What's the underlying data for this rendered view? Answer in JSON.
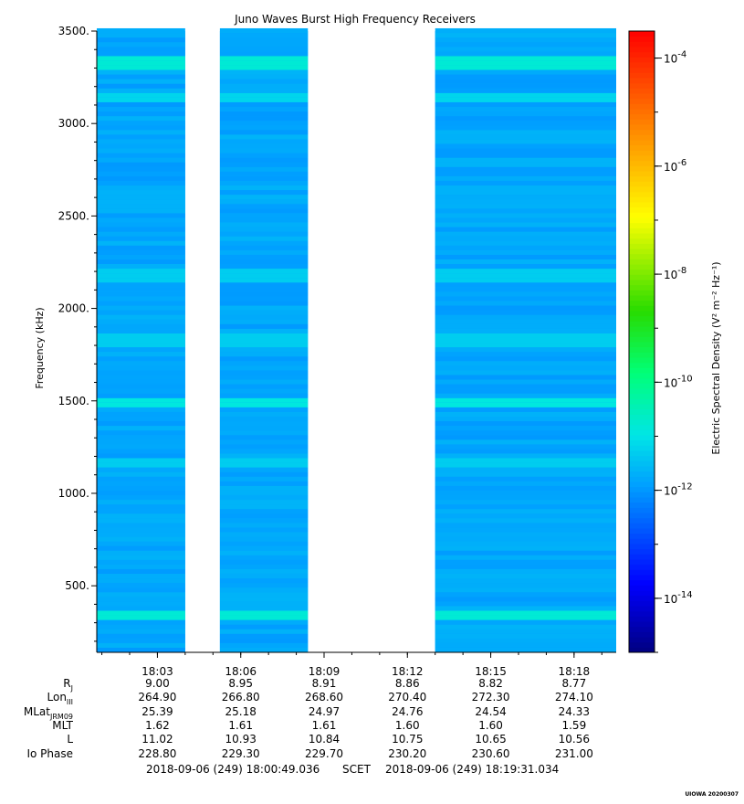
{
  "chart_data": {
    "type": "heatmap",
    "title": "Juno Waves Burst High Frequency Receivers",
    "ylabel": "Frequency (kHz)",
    "ylim": [
      140,
      3500
    ],
    "y_ticks": [
      500,
      1000,
      1500,
      2000,
      2500,
      3000,
      3500
    ],
    "y_tick_labels": [
      "500.",
      "1000.",
      "1500.",
      "2000.",
      "2500.",
      "3000.",
      "3500."
    ],
    "x_range": [
      "18:00:49",
      "18:19:31"
    ],
    "x_ticks": [
      "18:03",
      "18:06",
      "18:09",
      "18:12",
      "18:15",
      "18:18"
    ],
    "data_segments": [
      {
        "start": "18:00:49",
        "end": "18:04:00"
      },
      {
        "start": "18:05:15",
        "end": "18:08:25"
      },
      {
        "start": "18:13:00",
        "end": "18:19:31"
      }
    ],
    "gap_segments": [
      {
        "start": "18:04:00",
        "end": "18:05:15"
      },
      {
        "start": "18:08:25",
        "end": "18:13:00"
      }
    ],
    "background_level_log10": -11.8,
    "emission_bands": [
      {
        "freq_khz": 3330,
        "log10_level": -10.8
      },
      {
        "freq_khz": 3140,
        "log10_level": -11.2
      },
      {
        "freq_khz": 2180,
        "log10_level": -11.3
      },
      {
        "freq_khz": 1830,
        "log10_level": -11.3
      },
      {
        "freq_khz": 1495,
        "log10_level": -10.9
      },
      {
        "freq_khz": 1160,
        "log10_level": -11.3
      },
      {
        "freq_khz": 340,
        "log10_level": -10.8
      }
    ],
    "colorbar": {
      "label": "Electric Spectral Density (V² m⁻² Hz⁻¹)",
      "scale": "log",
      "range_log10": [
        -15,
        -3.5
      ],
      "tick_labels": [
        {
          "exp": -4,
          "text": "10-4"
        },
        {
          "exp": -6,
          "text": "10-6"
        },
        {
          "exp": -8,
          "text": "10-8"
        },
        {
          "exp": -10,
          "text": "10-10"
        },
        {
          "exp": -12,
          "text": "10-12"
        },
        {
          "exp": -14,
          "text": "10-14"
        }
      ]
    }
  },
  "ephemeris": {
    "rows": [
      {
        "label": "R",
        "sub": "J",
        "values": [
          "9.00",
          "8.95",
          "8.91",
          "8.86",
          "8.82",
          "8.77"
        ]
      },
      {
        "label": "Lon",
        "sub": "III",
        "values": [
          "264.90",
          "266.80",
          "268.60",
          "270.40",
          "272.30",
          "274.10"
        ]
      },
      {
        "label": "MLat",
        "sub": "JRM09",
        "values": [
          "25.39",
          "25.18",
          "24.97",
          "24.76",
          "24.54",
          "24.33"
        ]
      },
      {
        "label": "MLT",
        "sub": "",
        "values": [
          "1.62",
          "1.61",
          "1.61",
          "1.60",
          "1.60",
          "1.59"
        ]
      },
      {
        "label": "L",
        "sub": "",
        "values": [
          "11.02",
          "10.93",
          "10.84",
          "10.75",
          "10.65",
          "10.56"
        ]
      },
      {
        "label": "Io Phase",
        "sub": "",
        "values": [
          "228.80",
          "229.30",
          "229.70",
          "230.20",
          "230.60",
          "231.00"
        ]
      }
    ]
  },
  "scet": {
    "start": "2018-09-06 (249) 18:00:49.036",
    "label": "SCET",
    "end": "2018-09-06 (249) 18:19:31.034"
  },
  "stamp": "UIOWA 20200307"
}
